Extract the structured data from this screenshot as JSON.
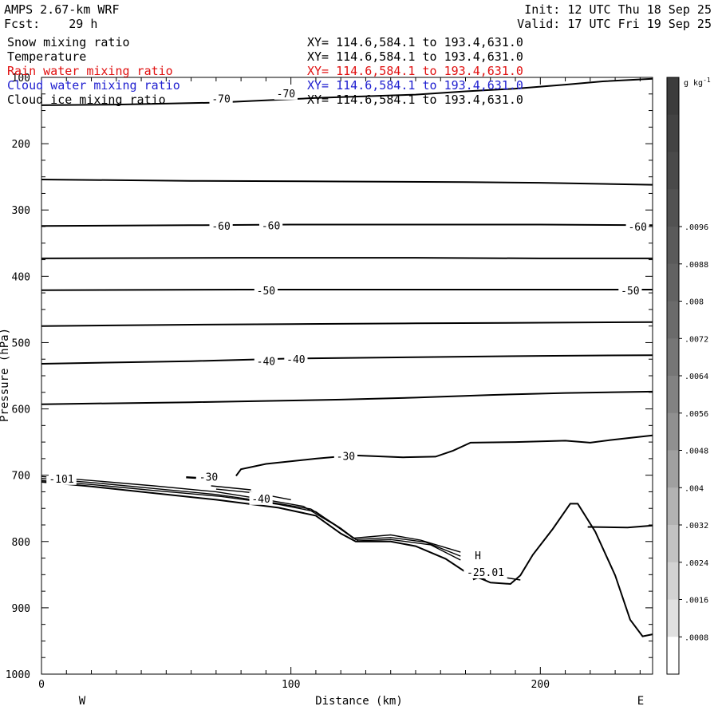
{
  "header": {
    "model": "AMPS 2.67-km WRF",
    "forecast": "Fcst:    29 h",
    "init": "Init: 12 UTC Thu 18 Sep 25",
    "valid": "Valid: 17 UTC Fri 19 Sep 25"
  },
  "chart_data": {
    "type": "cross-section",
    "xlabel": "Distance (km)",
    "ylabel": "Pressure (hPa)",
    "x_range": [
      0,
      245
    ],
    "y_range": [
      100,
      1000
    ],
    "y_scale": "linear, inverted (pressure increases downward)",
    "x_ticks": [
      "0",
      "100",
      "200"
    ],
    "x_tick_values": [
      0,
      100,
      200
    ],
    "y_ticks": [
      "100",
      "200",
      "300",
      "400",
      "500",
      "600",
      "700",
      "800",
      "900",
      "1000"
    ],
    "y_tick_values": [
      100,
      200,
      300,
      400,
      500,
      600,
      700,
      800,
      900,
      1000
    ],
    "direction_labels": {
      "left": "W",
      "right": "E"
    },
    "legend": [
      {
        "name": "Snow mixing ratio",
        "color": "#000000",
        "range": "XY= 114.6,584.1 to 193.4,631.0"
      },
      {
        "name": "Temperature",
        "color": "#000000",
        "range": "XY= 114.6,584.1 to 193.4,631.0"
      },
      {
        "name": "Rain water mixing ratio",
        "color": "#e01010",
        "range": "XY= 114.6,584.1 to 193.4,631.0"
      },
      {
        "name": "Cloud water mixing ratio",
        "color": "#2020d0",
        "range": "XY= 114.6,584.1 to 193.4,631.0"
      },
      {
        "name": "Cloud ice mixing ratio",
        "color": "#000000",
        "range": "XY= 114.6,584.1 to 193.4,631.0"
      }
    ],
    "colorbar": {
      "unit": "g kg",
      "unit_exponent": "-1",
      "labels": [
        ".0096",
        ".0088",
        ".008",
        ".0072",
        ".0064",
        ".0056",
        ".0048",
        ".004",
        ".0032",
        ".0024",
        ".0016",
        ".0008"
      ],
      "label_values": [
        0.0096,
        0.0088,
        0.008,
        0.0072,
        0.0064,
        0.0056,
        0.0048,
        0.004,
        0.0032,
        0.0024,
        0.0016,
        0.0008
      ],
      "bin_colors": [
        "#3c3c3c",
        "#434343",
        "#4a4a4a",
        "#525252",
        "#5a5a5a",
        "#626262",
        "#6b6b6b",
        "#767676",
        "#828282",
        "#909090",
        "#a0a0a0",
        "#b2b2b2",
        "#c2c2c2",
        "#d2d2d2",
        "#e0e0e0",
        "#ffffff"
      ]
    },
    "isotherms": [
      {
        "label": "",
        "points": [
          [
            0,
            142
          ],
          [
            30,
            141
          ],
          [
            70,
            138
          ],
          [
            110,
            131
          ],
          [
            150,
            126
          ],
          [
            170,
            121
          ],
          [
            190,
            117
          ],
          [
            210,
            111
          ],
          [
            225,
            106
          ],
          [
            245,
            102
          ]
        ]
      },
      {
        "label": "",
        "points": [
          [
            0,
            254
          ],
          [
            60,
            256
          ],
          [
            120,
            257
          ],
          [
            170,
            258
          ],
          [
            200,
            259
          ],
          [
            245,
            262
          ]
        ]
      },
      {
        "label": "",
        "points": [
          [
            0,
            324
          ],
          [
            60,
            323
          ],
          [
            100,
            322
          ],
          [
            150,
            322
          ],
          [
            200,
            322
          ],
          [
            245,
            323
          ]
        ]
      },
      {
        "label": "",
        "points": [
          [
            0,
            373
          ],
          [
            80,
            372
          ],
          [
            150,
            372
          ],
          [
            200,
            373
          ],
          [
            245,
            373
          ]
        ]
      },
      {
        "label": "",
        "points": [
          [
            0,
            421
          ],
          [
            80,
            420
          ],
          [
            150,
            420
          ],
          [
            200,
            420
          ],
          [
            245,
            420
          ]
        ]
      },
      {
        "label": "",
        "points": [
          [
            0,
            475
          ],
          [
            60,
            473
          ],
          [
            100,
            472
          ],
          [
            150,
            471
          ],
          [
            200,
            470
          ],
          [
            245,
            469
          ]
        ]
      },
      {
        "label": "",
        "points": [
          [
            0,
            532
          ],
          [
            60,
            528
          ],
          [
            100,
            524
          ],
          [
            150,
            522
          ],
          [
            200,
            520
          ],
          [
            245,
            519
          ]
        ]
      },
      {
        "label": "",
        "points": [
          [
            0,
            593
          ],
          [
            60,
            590
          ],
          [
            120,
            586
          ],
          [
            150,
            583
          ],
          [
            180,
            579
          ],
          [
            210,
            576
          ],
          [
            245,
            574
          ]
        ]
      },
      {
        "label": "",
        "points": [
          [
            78,
            701
          ],
          [
            80,
            691
          ],
          [
            90,
            683
          ],
          [
            110,
            675
          ],
          [
            125,
            670
          ],
          [
            145,
            673
          ],
          [
            158,
            672
          ],
          [
            165,
            663
          ],
          [
            172,
            651
          ],
          [
            190,
            650
          ],
          [
            210,
            648
          ],
          [
            220,
            651
          ],
          [
            228,
            647
          ],
          [
            245,
            640
          ]
        ]
      },
      {
        "label": "",
        "points": [
          [
            219,
            778
          ],
          [
            235,
            779
          ],
          [
            245,
            776
          ]
        ]
      }
    ],
    "contour_labels": [
      {
        "text": "-70",
        "x": 72,
        "y": 132
      },
      {
        "text": "-70",
        "x": 98,
        "y": 124
      },
      {
        "text": "-60",
        "x": 72,
        "y": 324
      },
      {
        "text": "-60",
        "x": 92,
        "y": 323
      },
      {
        "text": "-60",
        "x": 239,
        "y": 325
      },
      {
        "text": "-50",
        "x": 90,
        "y": 421
      },
      {
        "text": "-50",
        "x": 236,
        "y": 421
      },
      {
        "text": "-40",
        "x": 90,
        "y": 528
      },
      {
        "text": "-40",
        "x": 102,
        "y": 525
      },
      {
        "text": "-30",
        "x": 122,
        "y": 671
      },
      {
        "text": "-30",
        "x": 67,
        "y": 702
      },
      {
        "text": "-40",
        "x": 88,
        "y": 735
      },
      {
        "text": "-25.01",
        "x": 178,
        "y": 846
      },
      {
        "text": "H",
        "x": 175,
        "y": 821
      },
      {
        "text": "-101",
        "x": 8,
        "y": 705
      }
    ],
    "terrain": [
      [
        0,
        710
      ],
      [
        20,
        717
      ],
      [
        45,
        727
      ],
      [
        70,
        737
      ],
      [
        95,
        749
      ],
      [
        110,
        761
      ],
      [
        120,
        788
      ],
      [
        126,
        800
      ],
      [
        140,
        800
      ],
      [
        150,
        807
      ],
      [
        162,
        826
      ],
      [
        170,
        846
      ],
      [
        180,
        862
      ],
      [
        188,
        864
      ],
      [
        192,
        851
      ],
      [
        197,
        820
      ],
      [
        205,
        781
      ],
      [
        212,
        743
      ],
      [
        215,
        743
      ],
      [
        222,
        785
      ],
      [
        230,
        851
      ],
      [
        236,
        918
      ],
      [
        241,
        943
      ],
      [
        245,
        940
      ]
    ],
    "terrain_layers": [
      [
        [
          0,
          702
        ],
        [
          20,
          708
        ],
        [
          45,
          716
        ],
        [
          70,
          725
        ],
        [
          90,
          737
        ],
        [
          105,
          747
        ],
        [
          118,
          776
        ],
        [
          125,
          795
        ],
        [
          140,
          790
        ],
        [
          152,
          798
        ],
        [
          168,
          816
        ]
      ],
      [
        [
          0,
          705
        ],
        [
          20,
          711
        ],
        [
          45,
          720
        ],
        [
          70,
          729
        ],
        [
          92,
          741
        ],
        [
          108,
          751
        ],
        [
          120,
          780
        ],
        [
          126,
          797
        ],
        [
          140,
          794
        ],
        [
          154,
          801
        ],
        [
          168,
          822
        ]
      ],
      [
        [
          0,
          708
        ],
        [
          20,
          714
        ],
        [
          45,
          723
        ],
        [
          72,
          732
        ],
        [
          95,
          744
        ],
        [
          110,
          755
        ],
        [
          121,
          784
        ],
        [
          127,
          799
        ],
        [
          140,
          797
        ],
        [
          156,
          805
        ],
        [
          168,
          828
        ]
      ],
      [
        [
          68,
          716
        ],
        [
          84,
          722
        ]
      ],
      [
        [
          70,
          721
        ],
        [
          86,
          727
        ],
        [
          100,
          737
        ]
      ],
      [
        [
          180,
          849
        ],
        [
          187,
          855
        ],
        [
          192,
          858
        ]
      ]
    ],
    "small_contours": [
      [
        [
          58,
          703
        ],
        [
          62,
          704
        ]
      ],
      [
        [
          173,
          857
        ],
        [
          175,
          854
        ],
        [
          178,
          858
        ]
      ]
    ]
  }
}
